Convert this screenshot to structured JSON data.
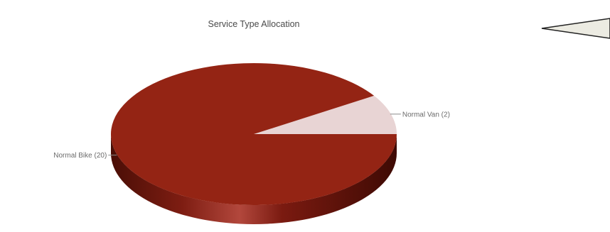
{
  "chart_data": {
    "type": "pie",
    "title": "Service Type Allocation",
    "slices": [
      {
        "label": "Normal Bike (20)",
        "name": "Normal Bike",
        "value": 20,
        "color": "#942414"
      },
      {
        "label": "Normal Van (2)",
        "name": "Normal Van",
        "value": 2,
        "color": "#e8d4d4"
      }
    ],
    "style": "3d"
  }
}
